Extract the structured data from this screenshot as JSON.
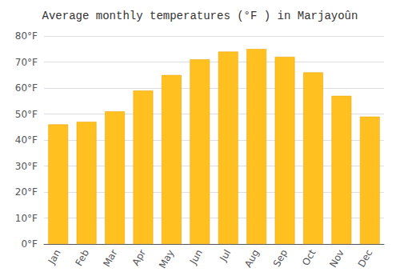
{
  "chart_data": {
    "type": "bar",
    "title": "Average monthly temperatures (°F ) in Marjayoûn",
    "categories": [
      "Jan",
      "Feb",
      "Mar",
      "Apr",
      "May",
      "Jun",
      "Jul",
      "Aug",
      "Sep",
      "Oct",
      "Nov",
      "Dec"
    ],
    "values": [
      46,
      47,
      51,
      59,
      65,
      71,
      74,
      75,
      72,
      66,
      57,
      49
    ],
    "color": "#FFC020",
    "ylim": [
      0,
      80
    ],
    "yticks": [
      {
        "value": 0,
        "label": "0°F"
      },
      {
        "value": 10,
        "label": "10°F"
      },
      {
        "value": 20,
        "label": "20°F"
      },
      {
        "value": 30,
        "label": "30°F"
      },
      {
        "value": 40,
        "label": "40°F"
      },
      {
        "value": 50,
        "label": "50°F"
      },
      {
        "value": 60,
        "label": "60°F"
      },
      {
        "value": 70,
        "label": "70°F"
      },
      {
        "value": 80,
        "label": "80°F"
      }
    ],
    "grid": true
  }
}
